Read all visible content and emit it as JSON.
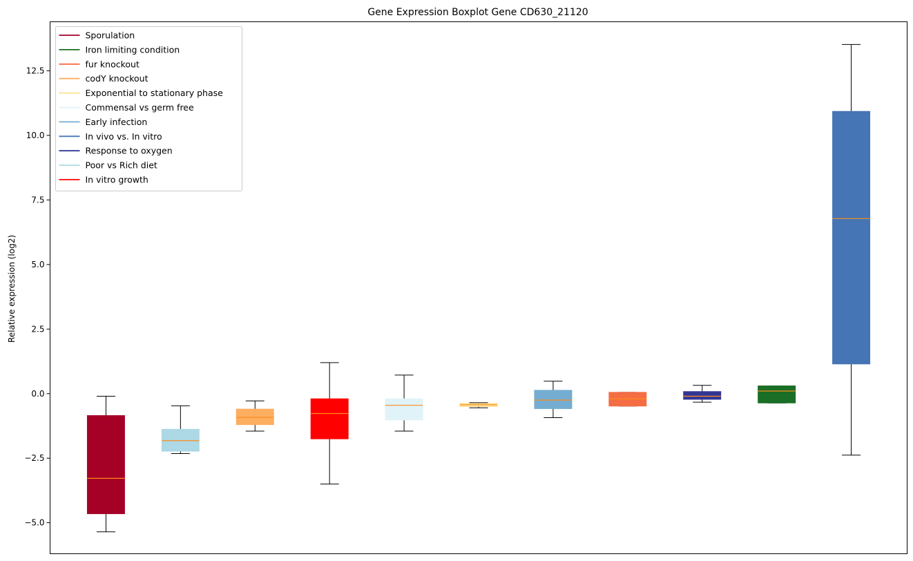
{
  "chart_data": {
    "type": "boxplot",
    "title": "Gene Expression Boxplot Gene CD630_21120",
    "xlabel": "",
    "ylabel": "Relative expression (log2)",
    "ylim": [
      -6.2,
      14.4
    ],
    "yticks": [
      -5.0,
      -2.5,
      0.0,
      2.5,
      5.0,
      7.5,
      10.0,
      12.5
    ],
    "ytick_labels": [
      "−5.0",
      "−2.5",
      "0.0",
      "2.5",
      "5.0",
      "7.5",
      "10.0",
      "12.5"
    ],
    "grid": false,
    "median_color": "#ff8c1a",
    "legend": {
      "position": "top-left",
      "entries": [
        {
          "label": "Sporulation",
          "color": "#a50026"
        },
        {
          "label": "Iron limiting condition",
          "color": "#1a6e26"
        },
        {
          "label": "fur knockout",
          "color": "#f46d43"
        },
        {
          "label": "codY knockout",
          "color": "#fdae61"
        },
        {
          "label": "Exponential to stationary phase",
          "color": "#fee090"
        },
        {
          "label": "Commensal vs germ free",
          "color": "#e0f3f8"
        },
        {
          "label": "Early infection",
          "color": "#74add1"
        },
        {
          "label": "In vivo vs. In vitro",
          "color": "#4575b4"
        },
        {
          "label": "Response to oxygen",
          "color": "#313695"
        },
        {
          "label": "Poor vs Rich diet",
          "color": "#add8e6"
        },
        {
          "label": "In vitro growth",
          "color": "#ff0000"
        }
      ]
    },
    "boxes": [
      {
        "group": "Sporulation",
        "color": "#a50026",
        "whislo": -5.35,
        "q1": -4.65,
        "med": -3.28,
        "q3": -0.85,
        "whishi": -0.1
      },
      {
        "group": "Poor vs Rich diet",
        "color": "#add8e6",
        "whislo": -2.32,
        "q1": -2.23,
        "med": -1.82,
        "q3": -1.38,
        "whishi": -0.47
      },
      {
        "group": "codY knockout",
        "color": "#fdae61",
        "whislo": -1.45,
        "q1": -1.2,
        "med": -0.92,
        "q3": -0.6,
        "whishi": -0.28
      },
      {
        "group": "In vitro growth",
        "color": "#ff0000",
        "whislo": -3.5,
        "q1": -1.75,
        "med": -0.77,
        "q3": -0.2,
        "whishi": 1.2
      },
      {
        "group": "Commensal vs germ free",
        "color": "#e0f3f8",
        "whislo": -1.45,
        "q1": -1.02,
        "med": -0.45,
        "q3": -0.2,
        "whishi": 0.72
      },
      {
        "group": "Exponential to stationary phase",
        "color": "#fee090",
        "whislo": -0.55,
        "q1": -0.5,
        "med": -0.43,
        "q3": -0.38,
        "whishi": -0.35
      },
      {
        "group": "Early infection",
        "color": "#74add1",
        "whislo": -0.93,
        "q1": -0.58,
        "med": -0.25,
        "q3": 0.13,
        "whishi": 0.48
      },
      {
        "group": "fur knockout",
        "color": "#f46d43",
        "whislo": -0.48,
        "q1": -0.48,
        "med": -0.2,
        "q3": 0.05,
        "whishi": 0.05
      },
      {
        "group": "Response to oxygen",
        "color": "#313695",
        "whislo": -0.33,
        "q1": -0.22,
        "med": -0.1,
        "q3": 0.08,
        "whishi": 0.32
      },
      {
        "group": "Iron limiting condition",
        "color": "#1a6e26",
        "whislo": -0.36,
        "q1": -0.36,
        "med": 0.1,
        "q3": 0.3,
        "whishi": 0.3
      },
      {
        "group": "In vivo vs. In vitro",
        "color": "#4575b4",
        "whislo": -2.38,
        "q1": 1.15,
        "med": 6.78,
        "q3": 10.93,
        "whishi": 13.52
      }
    ]
  }
}
